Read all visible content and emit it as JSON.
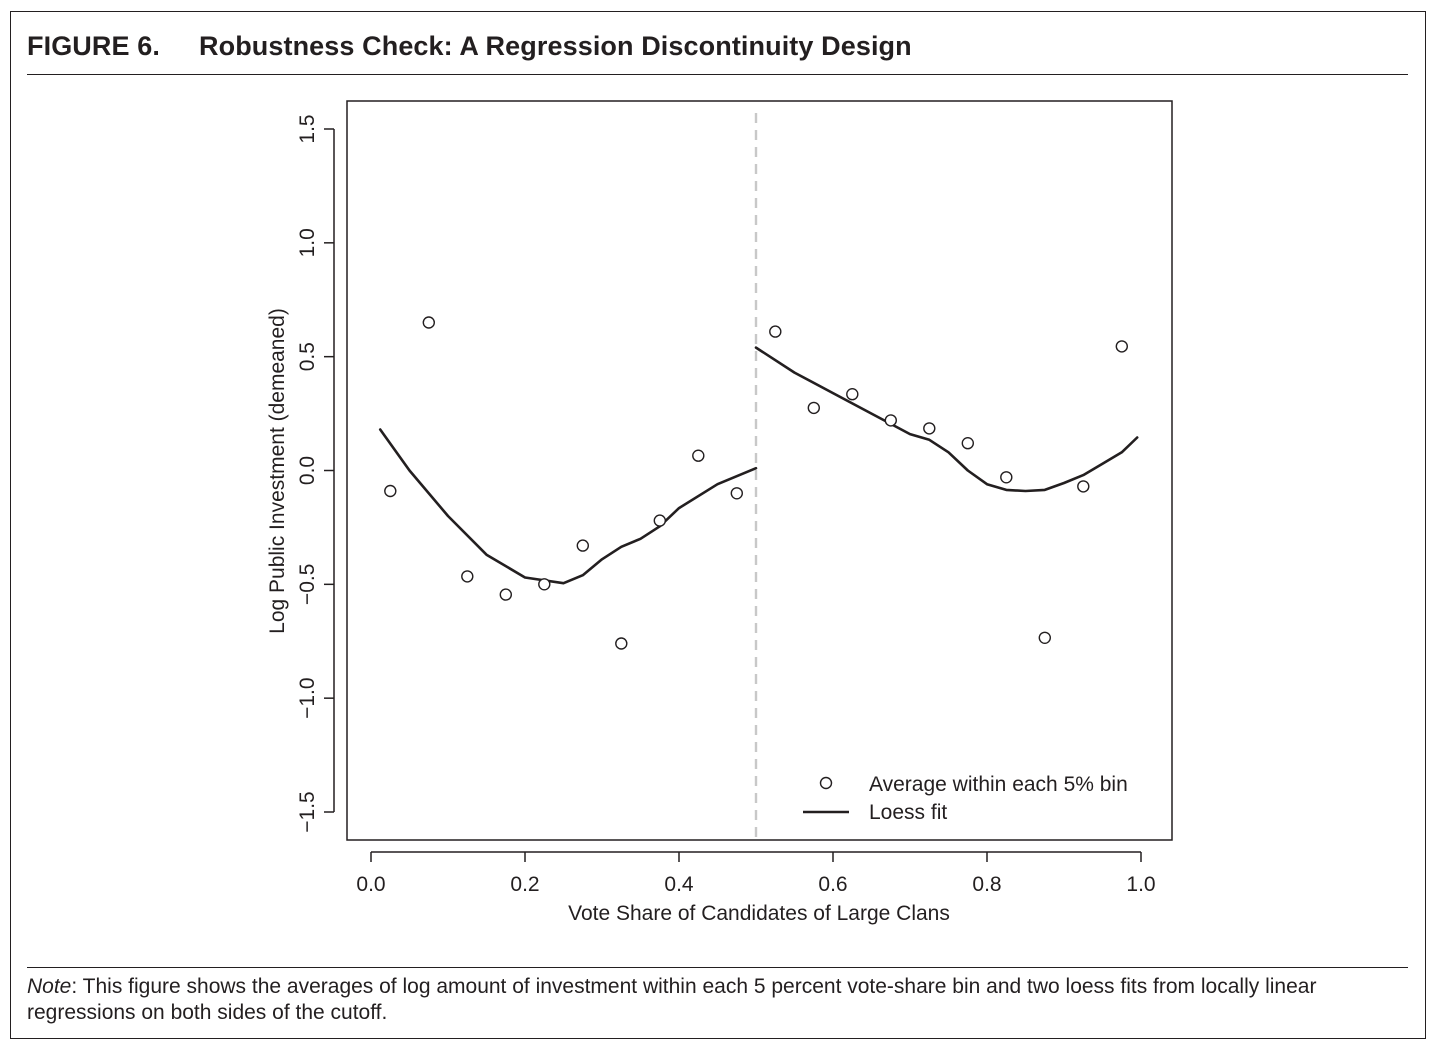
{
  "figure": {
    "number": "FIGURE 6.",
    "title": "Robustness Check: A Regression Discontinuity Design",
    "note_label": "Note",
    "note_text": ": This figure shows the averages of log amount of investment within each 5 percent vote-share bin and two loess fits from locally linear regressions on both sides of the cutoff."
  },
  "chart_data": {
    "type": "scatter",
    "xlabel": "Vote Share of Candidates of Large Clans",
    "ylabel": "Log Public Investment (demeaned)",
    "xlim": [
      0.0,
      1.0
    ],
    "ylim": [
      -1.5,
      1.5
    ],
    "x_ticks": [
      {
        "value": 0.0,
        "label": "0.0"
      },
      {
        "value": 0.2,
        "label": "0.2"
      },
      {
        "value": 0.4,
        "label": "0.4"
      },
      {
        "value": 0.6,
        "label": "0.6"
      },
      {
        "value": 0.8,
        "label": "0.8"
      },
      {
        "value": 1.0,
        "label": "1.0"
      }
    ],
    "y_ticks": [
      {
        "value": -1.5,
        "label": "−1.5"
      },
      {
        "value": -1.0,
        "label": "−1.0"
      },
      {
        "value": -0.5,
        "label": "−0.5"
      },
      {
        "value": 0.0,
        "label": "0.0"
      },
      {
        "value": 0.5,
        "label": "0.5"
      },
      {
        "value": 1.0,
        "label": "1.0"
      },
      {
        "value": 1.5,
        "label": "1.5"
      }
    ],
    "cutoff": 0.5,
    "grid": false,
    "legend_position": "bottom-right",
    "colors": {
      "ink": "#231f20",
      "cutoff": "#c8c8c8"
    },
    "series": [
      {
        "name": "Average within each 5% bin",
        "kind": "points",
        "x": [
          0.025,
          0.075,
          0.125,
          0.175,
          0.225,
          0.275,
          0.325,
          0.375,
          0.425,
          0.475,
          0.525,
          0.575,
          0.625,
          0.675,
          0.725,
          0.775,
          0.825,
          0.875,
          0.925,
          0.975
        ],
        "y": [
          -0.09,
          0.65,
          -0.465,
          -0.545,
          -0.5,
          -0.33,
          -0.76,
          -0.22,
          0.065,
          -0.1,
          0.61,
          0.275,
          0.335,
          0.22,
          0.185,
          0.12,
          -0.03,
          -0.735,
          -0.07,
          0.545
        ]
      },
      {
        "name": "Loess fit",
        "kind": "line",
        "segments": [
          {
            "x": [
              0.012,
              0.05,
              0.1,
              0.15,
              0.2,
              0.25,
              0.275,
              0.3,
              0.325,
              0.35,
              0.375,
              0.4,
              0.45,
              0.5
            ],
            "y": [
              0.18,
              0.0,
              -0.2,
              -0.37,
              -0.47,
              -0.495,
              -0.46,
              -0.39,
              -0.335,
              -0.3,
              -0.245,
              -0.165,
              -0.06,
              0.01
            ]
          },
          {
            "x": [
              0.5,
              0.55,
              0.6,
              0.65,
              0.7,
              0.725,
              0.75,
              0.775,
              0.8,
              0.825,
              0.85,
              0.875,
              0.9,
              0.925,
              0.95,
              0.975,
              0.995
            ],
            "y": [
              0.54,
              0.43,
              0.34,
              0.25,
              0.16,
              0.135,
              0.08,
              0.0,
              -0.06,
              -0.085,
              -0.09,
              -0.085,
              -0.055,
              -0.02,
              0.03,
              0.08,
              0.145
            ]
          }
        ]
      }
    ]
  }
}
